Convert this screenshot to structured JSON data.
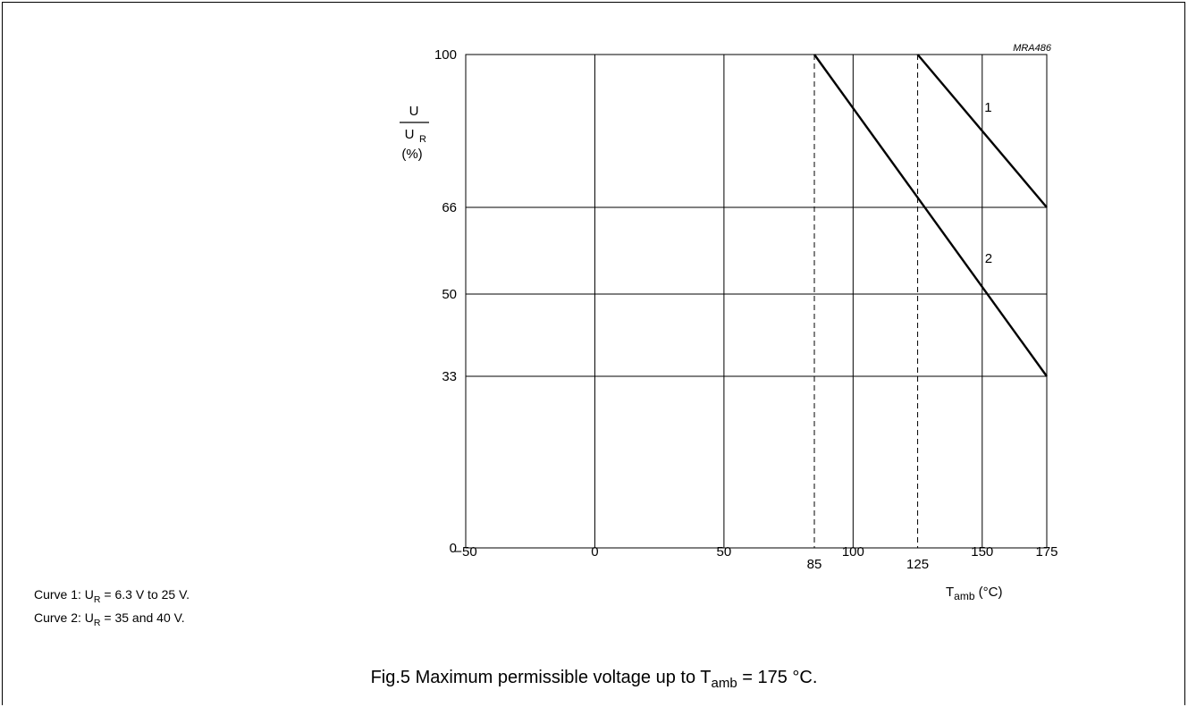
{
  "chart_data": {
    "type": "line",
    "figure_id": "MRA486",
    "x_ticks": [
      -50,
      0,
      50,
      85,
      100,
      125,
      150,
      175
    ],
    "x_tick_labels": [
      "−50",
      "0",
      "50",
      "85",
      "100",
      "125",
      "150",
      "175"
    ],
    "y_ticks": [
      0,
      33,
      50,
      66,
      100
    ],
    "y_tick_labels": [
      "0",
      "33",
      "50",
      "66",
      "100"
    ],
    "xlim": [
      -50,
      175
    ],
    "ylim": [
      0,
      100
    ],
    "xlabel": {
      "main": "T",
      "sub": "amb",
      "unit": " (°C)"
    },
    "ylabel": {
      "numerator": "U",
      "denominator": "U",
      "denominator_sub": "R",
      "unit": "(%)"
    },
    "dashed_verticals": [
      85,
      125
    ],
    "grid": true,
    "series": [
      {
        "name": "1",
        "x": [
          125,
          175
        ],
        "y": [
          100,
          66
        ]
      },
      {
        "name": "2",
        "x": [
          85,
          175
        ],
        "y": [
          100,
          33
        ]
      }
    ],
    "notes": [
      {
        "prefix": "Curve 1: U",
        "sub": "R",
        "suffix": " = 6.3 V to 25 V."
      },
      {
        "prefix": "Curve 2: U",
        "sub": "R",
        "suffix": " = 35 and 40 V."
      }
    ],
    "caption": {
      "prefix": "Fig.5  Maximum permissible voltage up to T",
      "sub": "amb",
      "suffix": " = 175 °C."
    }
  }
}
